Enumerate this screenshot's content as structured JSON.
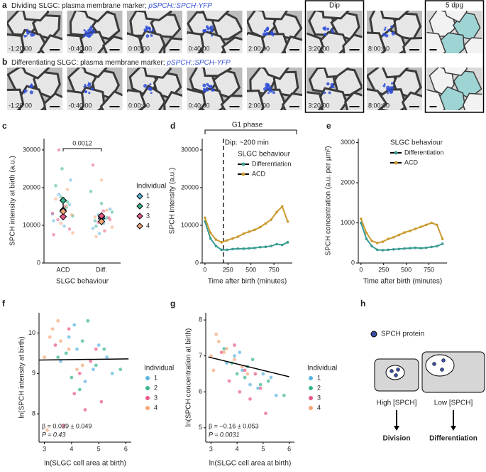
{
  "panel_letters": [
    "a",
    "b",
    "c",
    "d",
    "e",
    "f",
    "g",
    "h"
  ],
  "images": {
    "a_title": "Dividing SLGC: plasma membrane marker; ",
    "a_gene": "pSPCH::SPCH-YFP",
    "b_title": "Differentiating SLGC: plasma membrane marker; ",
    "b_gene": "pSPCH::SPCH-YFP",
    "timestamps": [
      "-1:20:00",
      "-0:40:00",
      "0:00:00",
      "0:40:00",
      "2:00:00",
      "3:20:00",
      "8:00:00"
    ],
    "dip": "Dip",
    "dpg": "5 dpg"
  },
  "chart_data": [
    {
      "type": "strip",
      "ylabel": "SPCH intensity at birth (a.u.)",
      "xlabel": "SLGC behaviour",
      "categories": [
        "ACD",
        "Diff."
      ],
      "ylim": [
        0,
        33000
      ],
      "yticks": [
        0,
        10000,
        20000,
        30000
      ],
      "annotation": "0.0012",
      "legend_title": "Individual",
      "series": [
        {
          "name": "1",
          "color": "#5ab4e0",
          "x": [
            "ACD",
            "ACD",
            "ACD",
            "ACD",
            "ACD",
            "ACD",
            "Diff.",
            "Diff.",
            "Diff.",
            "Diff.",
            "Diff.",
            "Diff."
          ],
          "values": [
            13000,
            15500,
            9800,
            18200,
            11200,
            22000,
            10500,
            12800,
            9200,
            14300,
            11800,
            7800
          ],
          "means": [
            14000,
            11800
          ]
        },
        {
          "name": "2",
          "color": "#37b58f",
          "x": [
            "ACD",
            "ACD",
            "ACD",
            "ACD",
            "ACD",
            "ACD",
            "Diff.",
            "Diff.",
            "Diff.",
            "Diff.",
            "Diff.",
            "Diff."
          ],
          "values": [
            14800,
            17500,
            20500,
            12500,
            16200,
            25000,
            11200,
            13500,
            12000,
            15800,
            9800,
            19000
          ],
          "means": [
            16600,
            12300
          ]
        },
        {
          "name": "3",
          "color": "#e85a86",
          "x": [
            "ACD",
            "ACD",
            "ACD",
            "ACD",
            "ACD",
            "ACD",
            "Diff.",
            "Diff.",
            "Diff.",
            "Diff.",
            "Diff.",
            "Diff."
          ],
          "values": [
            11500,
            13200,
            9000,
            15000,
            30000,
            7500,
            12000,
            13800,
            10800,
            26000,
            11500,
            8500
          ],
          "means": [
            12300,
            12500
          ]
        },
        {
          "name": "4",
          "color": "#f5a67a",
          "x": [
            "ACD",
            "ACD",
            "ACD",
            "ACD",
            "ACD",
            "ACD",
            "Diff.",
            "Diff.",
            "Diff.",
            "Diff.",
            "Diff.",
            "Diff."
          ],
          "values": [
            12800,
            15200,
            10500,
            17000,
            8000,
            19500,
            10800,
            12200,
            9500,
            14000,
            22000,
            7000
          ],
          "means": [
            13700,
            11000
          ]
        }
      ]
    },
    {
      "type": "line",
      "ylabel": "SPCH intensity (a.u.)",
      "xlabel": "Time after birth (minutes)",
      "bracket_label": "G1 phase",
      "dip_label": "Dip: ~200 min",
      "dip_line": 200,
      "legend_title": "SLGC behaviour",
      "xlim": [
        -30,
        950
      ],
      "xticks": [
        0,
        250,
        500,
        750
      ],
      "ylim": [
        0,
        33000
      ],
      "yticks": [
        0,
        10000,
        20000,
        30000
      ],
      "x": [
        0,
        60,
        120,
        180,
        240,
        300,
        360,
        420,
        480,
        540,
        600,
        660,
        720,
        780,
        840,
        900
      ],
      "series": [
        {
          "name": "Differentiation",
          "color": "#3a9c94",
          "values": [
            11000,
            6500,
            4500,
            3500,
            3500,
            3700,
            3800,
            3800,
            3900,
            4000,
            4200,
            4300,
            4500,
            5000,
            4800,
            5500
          ]
        },
        {
          "name": "ACD",
          "color": "#c99a2e",
          "values": [
            12000,
            8000,
            6200,
            5500,
            6000,
            6500,
            7000,
            7800,
            8300,
            8800,
            9500,
            10500,
            11500,
            13500,
            15000,
            11000
          ]
        }
      ]
    },
    {
      "type": "line",
      "ylabel": "SPCH concentration (a.u. per µm²)",
      "xlabel": "Time after birth (minutes)",
      "legend_title": "SLGC behaviour",
      "xlim": [
        -30,
        950
      ],
      "xticks": [
        0,
        250,
        500,
        750
      ],
      "ylim": [
        0,
        3100
      ],
      "yticks": [
        0,
        1000,
        2000,
        3000
      ],
      "x": [
        0,
        60,
        120,
        180,
        240,
        300,
        360,
        420,
        480,
        540,
        600,
        660,
        720,
        780,
        840,
        900
      ],
      "series": [
        {
          "name": "Differentiation",
          "color": "#3a9c94",
          "values": [
            1000,
            600,
            420,
            330,
            320,
            330,
            340,
            350,
            360,
            370,
            380,
            370,
            380,
            400,
            420,
            480
          ]
        },
        {
          "name": "ACD",
          "color": "#c99a2e",
          "values": [
            1100,
            750,
            550,
            500,
            530,
            600,
            640,
            700,
            760,
            800,
            850,
            900,
            950,
            1000,
            950,
            600
          ]
        }
      ]
    },
    {
      "type": "scatter",
      "ylabel": "ln(SPCH intensity at birth)",
      "xlabel": "ln(SLGC cell area at birth)",
      "stat_beta": "β = 0.039 ± 0.049",
      "stat_p": "P = 0.43",
      "legend_title": "Individual",
      "xlim": [
        2.8,
        6.2
      ],
      "xticks": [
        3,
        4,
        5,
        6
      ],
      "ylim": [
        7.3,
        10.5
      ],
      "yticks": [
        8,
        9,
        10
      ],
      "fit": {
        "x": [
          2.8,
          6.1
        ],
        "y": [
          9.33,
          9.36
        ]
      },
      "series": [
        {
          "name": "1",
          "color": "#5ab4e0",
          "x": [
            4.2,
            4.8,
            3.9,
            5.3,
            4.5,
            3.6,
            5.0,
            4.1,
            5.5
          ],
          "values": [
            9.6,
            9.1,
            9.9,
            9.4,
            8.8,
            9.3,
            9.7,
            10.2,
            9.0
          ]
        },
        {
          "name": "2",
          "color": "#37b58f",
          "x": [
            3.8,
            4.4,
            4.9,
            4.0,
            5.2,
            3.5,
            4.6,
            5.8,
            4.3
          ],
          "values": [
            9.5,
            9.8,
            9.2,
            8.9,
            9.6,
            9.4,
            10.3,
            9.1,
            8.6
          ]
        },
        {
          "name": "3",
          "color": "#e85a86",
          "x": [
            3.4,
            4.1,
            4.7,
            3.9,
            5.1,
            4.3,
            3.7,
            4.9,
            4.5
          ],
          "values": [
            9.7,
            8.5,
            9.3,
            10.1,
            8.3,
            9.0,
            7.7,
            9.6,
            8.1
          ]
        },
        {
          "name": "4",
          "color": "#f5a67a",
          "x": [
            3.0,
            3.3,
            3.6,
            3.9,
            3.2,
            4.4,
            3.5,
            4.2,
            3.1
          ],
          "values": [
            9.4,
            10.1,
            9.8,
            9.6,
            9.9,
            9.2,
            10.3,
            9.1,
            7.6
          ]
        }
      ]
    },
    {
      "type": "scatter",
      "ylabel": "ln(SPCH concentration at birth)",
      "xlabel": "ln(SLGC cell area at birth)",
      "stat_beta": "β = −0.16 ± 0.053",
      "stat_p": "P = 0.0031",
      "legend_title": "Individual",
      "xlim": [
        2.8,
        6.2
      ],
      "xticks": [
        3,
        4,
        5,
        6
      ],
      "ylim": [
        4.6,
        8.2
      ],
      "yticks": [
        5,
        6,
        7,
        8
      ],
      "fit": {
        "x": [
          2.9,
          6.0
        ],
        "y": [
          6.97,
          6.42
        ]
      },
      "series": [
        {
          "name": "1",
          "color": "#5ab4e0",
          "x": [
            4.2,
            4.8,
            3.9,
            5.3,
            4.5,
            3.6,
            5.0,
            4.1,
            5.5
          ],
          "values": [
            6.6,
            6.1,
            7.0,
            6.4,
            6.2,
            6.8,
            6.5,
            7.1,
            5.9
          ]
        },
        {
          "name": "2",
          "color": "#37b58f",
          "x": [
            3.8,
            4.4,
            4.9,
            4.0,
            5.2,
            3.5,
            4.6,
            5.8,
            4.3
          ],
          "values": [
            6.8,
            6.7,
            6.2,
            6.5,
            6.3,
            7.2,
            6.9,
            5.9,
            6.4
          ]
        },
        {
          "name": "3",
          "color": "#e85a86",
          "x": [
            3.4,
            4.1,
            4.7,
            3.9,
            5.1,
            4.3,
            3.7,
            4.9,
            4.5
          ],
          "values": [
            7.1,
            6.0,
            6.5,
            7.3,
            5.4,
            6.6,
            6.3,
            6.1,
            5.8
          ]
        },
        {
          "name": "4",
          "color": "#f5a67a",
          "x": [
            3.0,
            3.3,
            3.6,
            3.9,
            3.2,
            4.4,
            3.5,
            4.2,
            3.1
          ],
          "values": [
            7.0,
            7.4,
            7.2,
            6.9,
            7.6,
            6.5,
            7.1,
            6.7,
            6.6
          ]
        }
      ]
    }
  ],
  "diagram": {
    "legend": "SPCH protein",
    "high": "High [SPCH]",
    "low": "Low [SPCH]",
    "division": "Division",
    "differentiation": "Differentiation"
  }
}
